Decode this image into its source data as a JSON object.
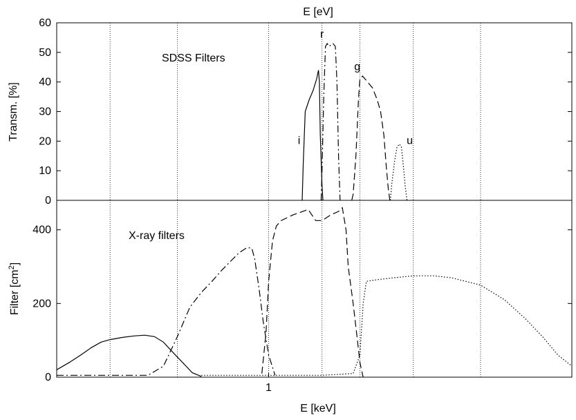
{
  "chart_data": [
    {
      "type": "line",
      "title": "",
      "top_axis_label": "E [eV]",
      "xlabel": "",
      "ylabel": "Transm. [%]",
      "ylim": [
        0,
        60
      ],
      "y_ticks": [
        0,
        10,
        20,
        30,
        40,
        50,
        60
      ],
      "grid": "vertical dotted lines",
      "annotation": "SDSS Filters",
      "series": [
        {
          "name": "i",
          "style": "solid",
          "x": [
            1.29,
            1.3,
            1.32,
            1.36,
            1.4,
            1.44,
            1.46,
            1.47,
            1.48,
            1.5,
            1.51
          ],
          "y": [
            0,
            12,
            30,
            34,
            37,
            41,
            44,
            40,
            22,
            5,
            0
          ]
        },
        {
          "name": "r",
          "style": "dash-dot",
          "x": [
            1.49,
            1.5,
            1.52,
            1.54,
            1.56,
            1.58,
            1.63,
            1.66,
            1.68,
            1.7,
            1.72
          ],
          "y": [
            0,
            10,
            35,
            52,
            53,
            52,
            53,
            52,
            40,
            15,
            0
          ]
        },
        {
          "name": "g",
          "style": "dashed",
          "x": [
            1.88,
            1.9,
            1.94,
            1.98,
            2.0,
            2.04,
            2.12,
            2.2,
            2.28,
            2.34,
            2.4,
            2.44,
            2.48,
            2.51
          ],
          "y": [
            0,
            2,
            15,
            35,
            41,
            42,
            40,
            38,
            34,
            30,
            22,
            12,
            4,
            0
          ]
        },
        {
          "name": "u",
          "style": "dotted",
          "x": [
            2.52,
            2.55,
            2.6,
            2.65,
            2.7,
            2.74,
            2.78,
            2.82,
            2.86
          ],
          "y": [
            0,
            6,
            13,
            18,
            19,
            18,
            12,
            5,
            0
          ]
        }
      ]
    },
    {
      "type": "line",
      "title": "",
      "xlabel": "E [keV]",
      "ylabel_main": "Filter [cm",
      "ylabel_sup": "2",
      "ylabel_end": "]",
      "x_scale": "log",
      "x_ticks": [
        1
      ],
      "ylim": [
        0,
        480
      ],
      "y_ticks": [
        0,
        200,
        400
      ],
      "grid": "vertical dotted lines",
      "annotation": "X-ray filters",
      "series": [
        {
          "style": "solid",
          "x": [
            0.2,
            0.22,
            0.24,
            0.26,
            0.28,
            0.3,
            0.33,
            0.36,
            0.39,
            0.42,
            0.45,
            0.48,
            0.52,
            0.56,
            0.6
          ],
          "y": [
            20,
            40,
            60,
            80,
            95,
            102,
            108,
            112,
            114,
            110,
            95,
            70,
            40,
            12,
            2
          ]
        },
        {
          "style": "dash-dot",
          "x": [
            0.2,
            0.4,
            0.45,
            0.5,
            0.55,
            0.6,
            0.65,
            0.7,
            0.75,
            0.8,
            0.85,
            0.88,
            0.9,
            0.93,
            0.96,
            1.0,
            1.05
          ],
          "y": [
            5,
            5,
            30,
            110,
            190,
            230,
            260,
            290,
            315,
            338,
            352,
            350,
            320,
            240,
            150,
            60,
            5
          ]
        },
        {
          "style": "dashed",
          "x": [
            0.95,
            0.98,
            1.0,
            1.03,
            1.06,
            1.1,
            1.2,
            1.35,
            1.43,
            1.5,
            1.6,
            1.7,
            1.75,
            1.8,
            1.83,
            1.9,
            1.95,
            2.0,
            2.05
          ],
          "y": [
            10,
            120,
            260,
            370,
            410,
            425,
            440,
            455,
            425,
            425,
            440,
            450,
            460,
            400,
            300,
            200,
            120,
            40,
            0
          ]
        },
        {
          "style": "dotted",
          "x": [
            0.6,
            1.5,
            1.9,
            2.0,
            2.05,
            2.1,
            2.3,
            2.6,
            3.0,
            3.5,
            4.0,
            5.0,
            6.0,
            7.0,
            8.0,
            9.0,
            10.0
          ],
          "y": [
            5,
            5,
            10,
            60,
            200,
            260,
            265,
            270,
            275,
            275,
            270,
            250,
            210,
            160,
            110,
            60,
            30
          ]
        }
      ]
    }
  ]
}
